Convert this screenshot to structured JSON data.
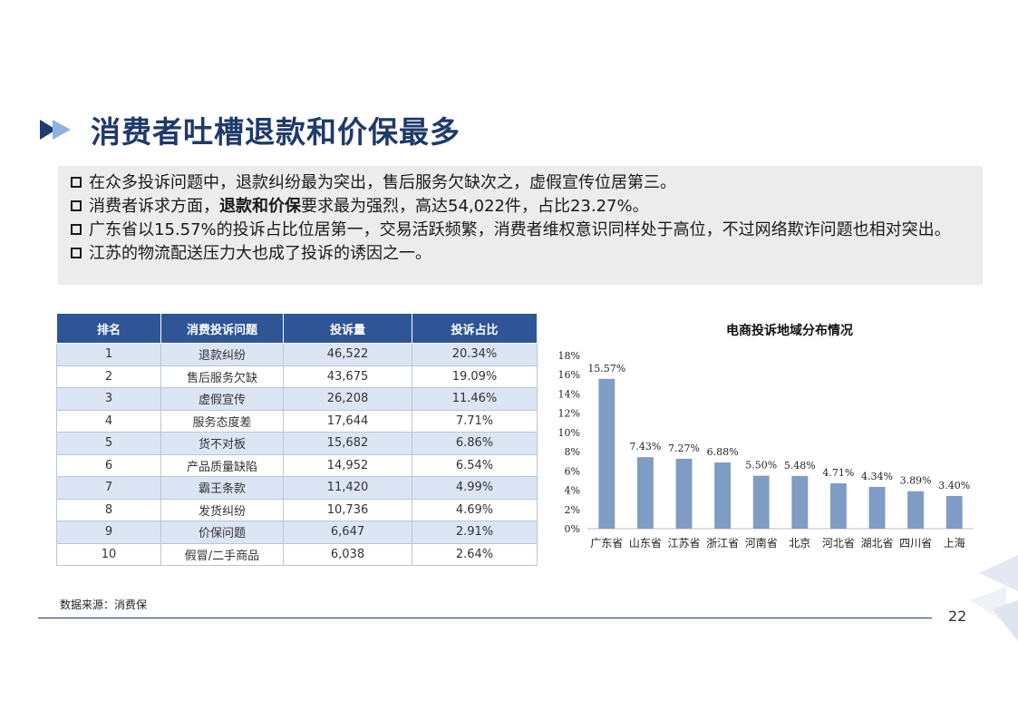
{
  "title": "消费者吐槽退款和价保最多",
  "bullets": [
    {
      "pre": "在众多投诉问题中，退款纠纷最为突出，售后服务欠缺次之，虚假宣传位居第三。",
      "bold": "",
      "post": ""
    },
    {
      "pre": "消费者诉求方面，",
      "bold": "退款和价保",
      "post": "要求最为强烈，高达54,022件，占比23.27%。"
    },
    {
      "pre": "广东省以15.57%的投诉占比位居第一，交易活跃频繁，消费者维权意识同样处于高位，不过网络欺诈问题也相对突出。",
      "bold": "",
      "post": ""
    },
    {
      "pre": "江苏的物流配送压力大也成了投诉的诱因之一。",
      "bold": "",
      "post": ""
    }
  ],
  "table": {
    "headers": [
      "排名",
      "消费投诉问题",
      "投诉量",
      "投诉占比"
    ],
    "rows": [
      [
        "1",
        "退款纠纷",
        "46,522",
        "20.34%"
      ],
      [
        "2",
        "售后服务欠缺",
        "43,675",
        "19.09%"
      ],
      [
        "3",
        "虚假宣传",
        "26,208",
        "11.46%"
      ],
      [
        "4",
        "服务态度差",
        "17,644",
        "7.71%"
      ],
      [
        "5",
        "货不对板",
        "15,682",
        "6.86%"
      ],
      [
        "6",
        "产品质量缺陷",
        "14,952",
        "6.54%"
      ],
      [
        "7",
        "霸王条款",
        "11,420",
        "4.99%"
      ],
      [
        "8",
        "发货纠纷",
        "10,736",
        "4.69%"
      ],
      [
        "9",
        "价保问题",
        "6,647",
        "2.91%"
      ],
      [
        "10",
        "假冒/二手商品",
        "6,038",
        "2.64%"
      ]
    ]
  },
  "chart_data": {
    "type": "bar",
    "title": "电商投诉地域分布情况",
    "categories": [
      "广东省",
      "山东省",
      "江苏省",
      "浙江省",
      "河南省",
      "北京",
      "河北省",
      "湖北省",
      "四川省",
      "上海"
    ],
    "values": [
      15.57,
      7.43,
      7.27,
      6.88,
      5.5,
      5.48,
      4.71,
      4.34,
      3.89,
      3.4
    ],
    "value_labels": [
      "15.57%",
      "7.43%",
      "7.27%",
      "6.88%",
      "5.50%",
      "5.48%",
      "4.71%",
      "4.34%",
      "3.89%",
      "3.40%"
    ],
    "y_ticks": [
      "0%",
      "2%",
      "4%",
      "6%",
      "8%",
      "10%",
      "12%",
      "14%",
      "16%",
      "18%"
    ],
    "ylim": [
      0,
      18
    ],
    "xlabel": "",
    "ylabel": "",
    "bar_color": "#7f9cc5",
    "grid": false
  },
  "source": "数据来源：消费保",
  "page_number": "22",
  "colors": {
    "title": "#1f3a6b",
    "header_bg": "#2f5597",
    "row_alt": "#dbe5f3"
  }
}
